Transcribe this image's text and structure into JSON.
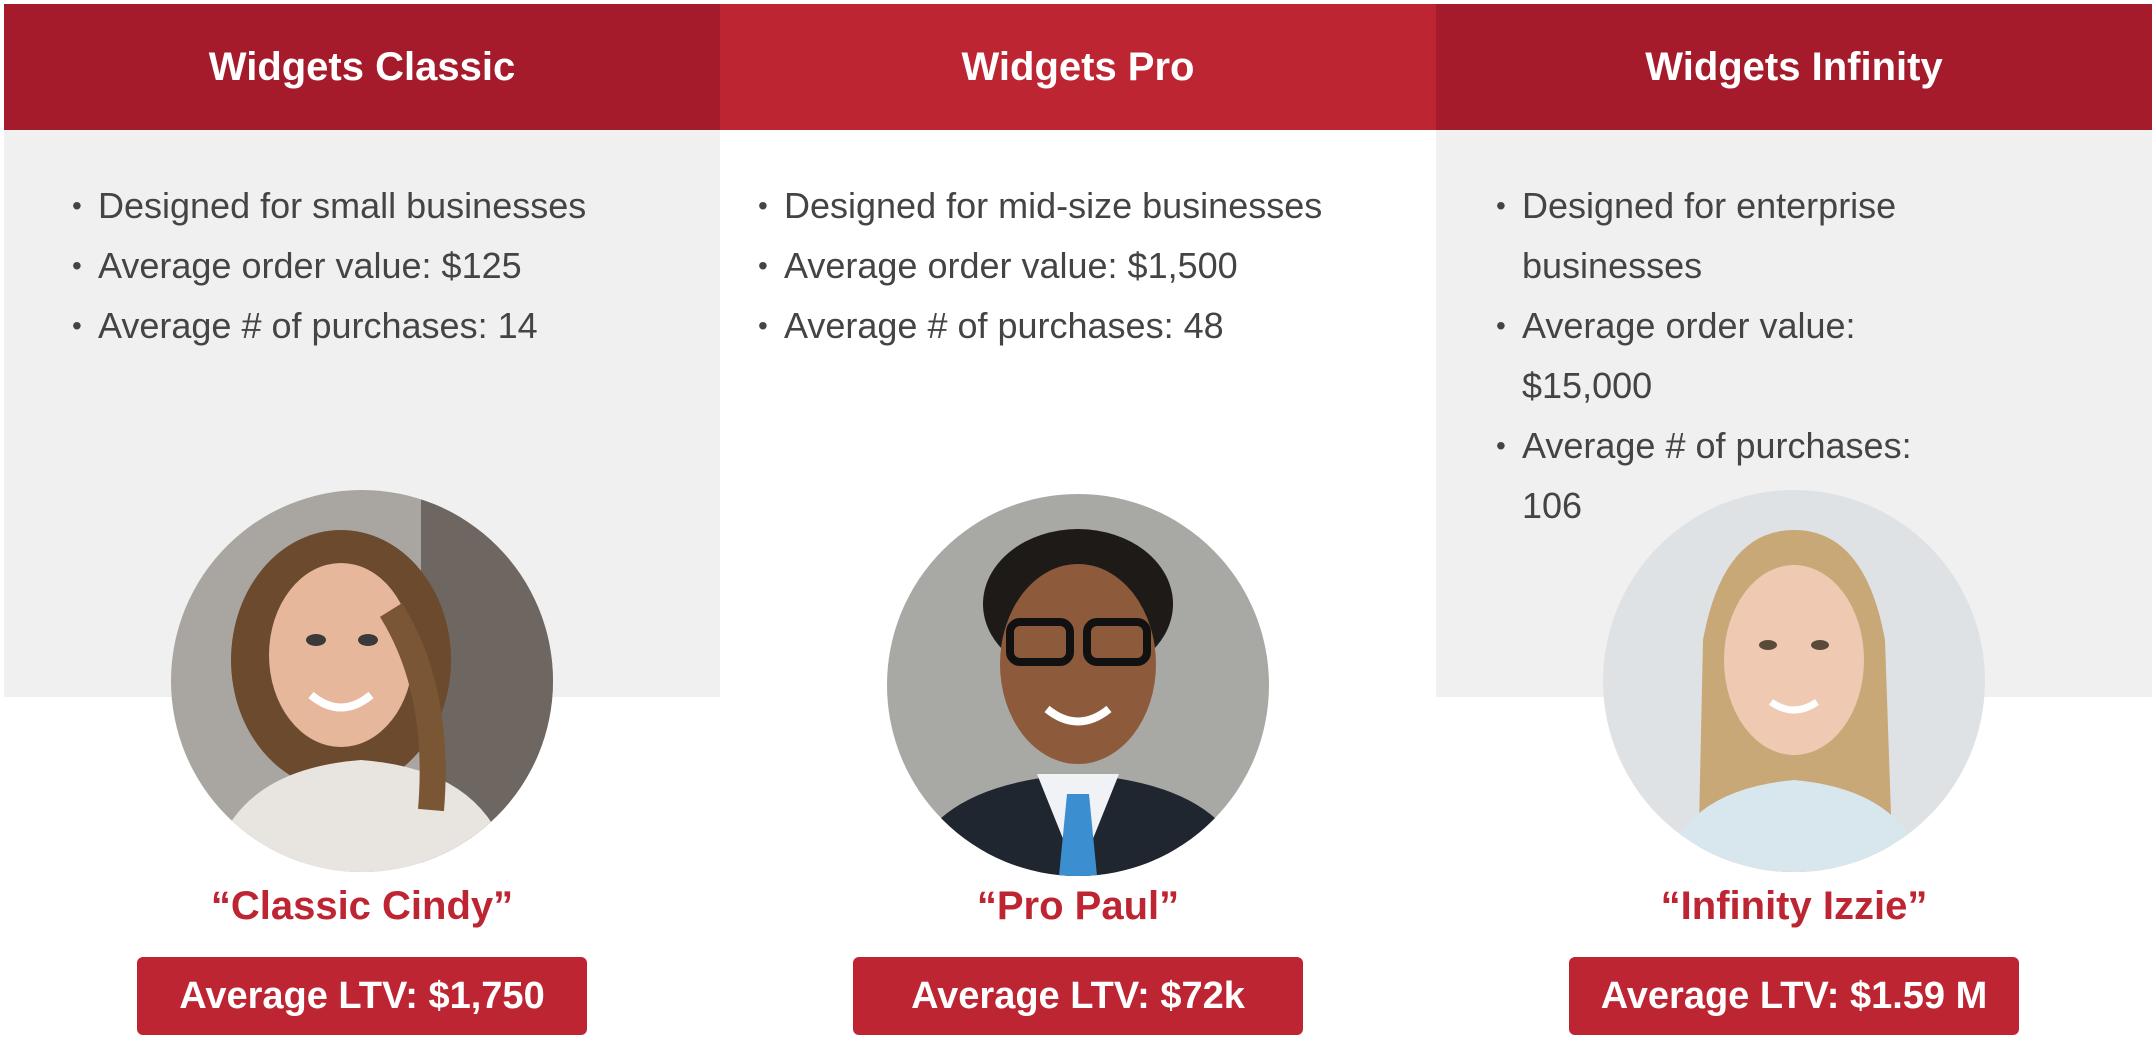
{
  "colors": {
    "header_dark": "#a61b2b",
    "header_mid": "#bd2532",
    "accent": "#be2532",
    "panel_gray": "#f0f0f0",
    "text": "#444444"
  },
  "tiers": [
    {
      "title": "Widgets Classic",
      "bullets": [
        "Designed for small businesses",
        "Average order value: $125",
        "Average # of purchases: 14"
      ],
      "persona": "“Classic Cindy”",
      "ltv": "Average LTV: $1,750",
      "photo": "woman-braid-photo"
    },
    {
      "title": "Widgets Pro",
      "bullets": [
        "Designed for mid-size businesses",
        "Average order value: $1,500",
        "Average # of purchases: 48"
      ],
      "persona": "“Pro Paul”",
      "ltv": "Average LTV: $72k",
      "photo": "man-glasses-photo"
    },
    {
      "title": "Widgets Infinity",
      "bullets": [
        "Designed for enterprise businesses",
        "Average order value: $15,000",
        "Average # of purchases: 106"
      ],
      "persona": "“Infinity Izzie”",
      "ltv": "Average LTV: $1.59 M",
      "photo": "woman-blonde-photo"
    }
  ]
}
